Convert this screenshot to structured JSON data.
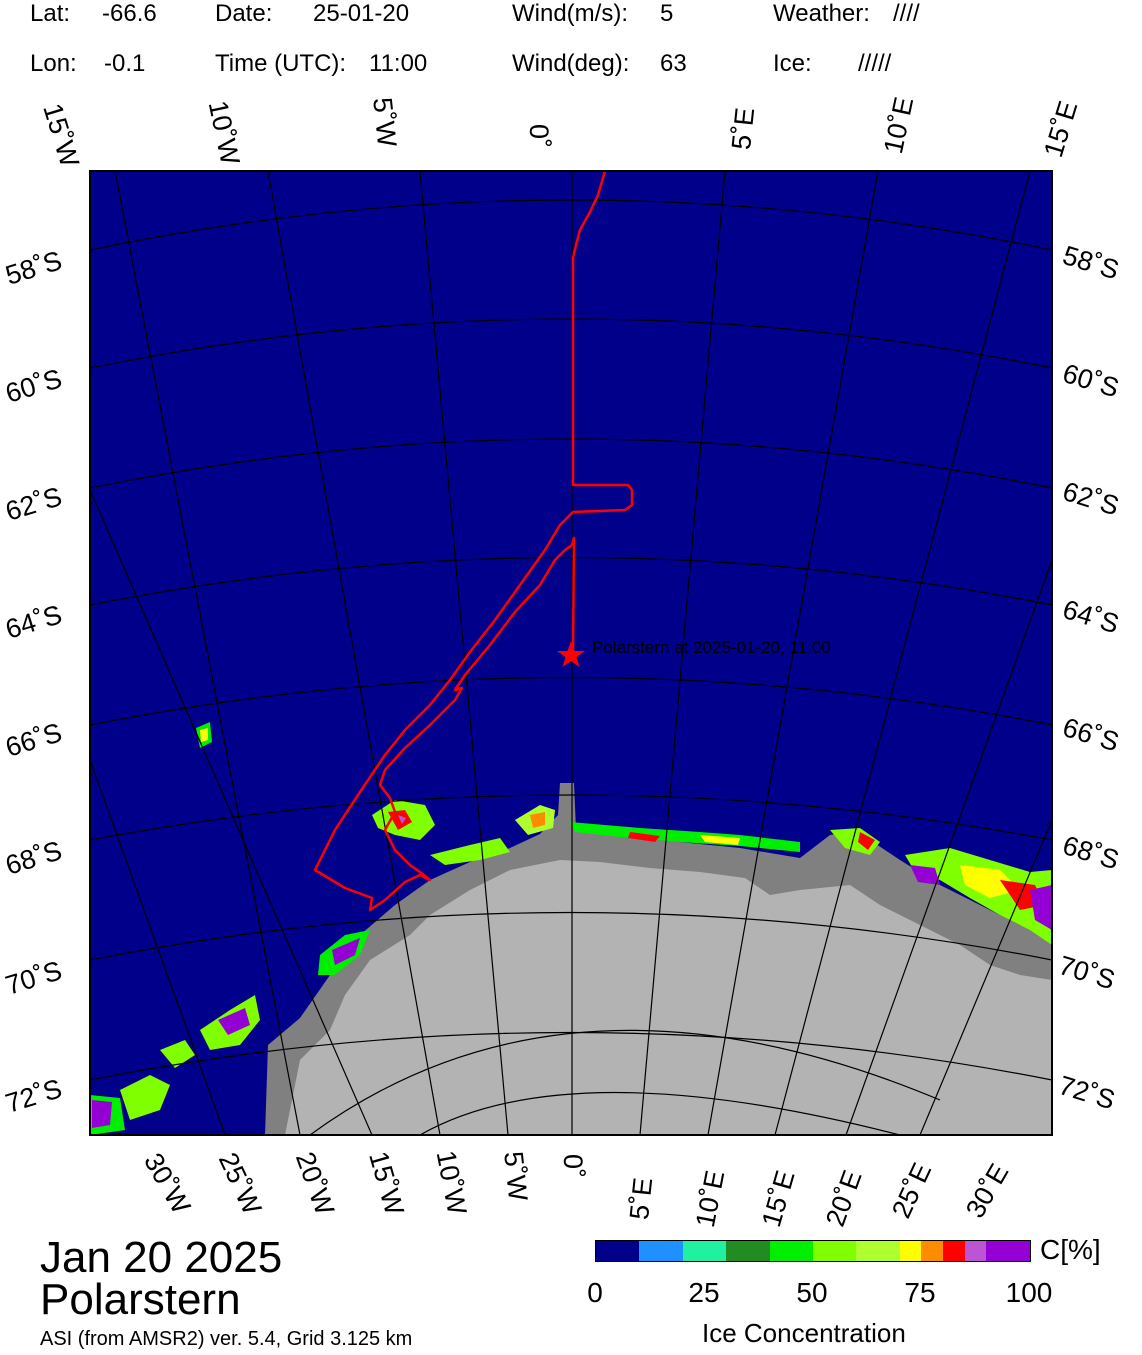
{
  "header": {
    "lat_label": "Lat:",
    "lat_value": "-66.6",
    "lon_label": "Lon:",
    "lon_value": "-0.1",
    "date_label": "Date:",
    "date_value": "25-01-20",
    "time_label": "Time (UTC):",
    "time_value": "11:00",
    "wind_speed_label": "Wind(m/s):",
    "wind_speed_value": "5",
    "wind_dir_label": "Wind(deg):",
    "wind_dir_value": "63",
    "weather_label": "Weather:",
    "weather_value": "////",
    "ice_label": "Ice:",
    "ice_value": "/////"
  },
  "map": {
    "top_lon_labels": [
      "15˚W",
      "10˚W",
      "5˚W",
      "0˚",
      "5˚E",
      "10˚E",
      "15˚E"
    ],
    "left_lat_labels": [
      "58˚S",
      "60˚S",
      "62˚S",
      "64˚S",
      "66˚S",
      "68˚S",
      "70˚S",
      "72˚S"
    ],
    "right_lat_labels": [
      "58˚S",
      "60˚S",
      "62˚S",
      "64˚S",
      "66˚S",
      "68˚S",
      "70˚S",
      "72˚S"
    ],
    "bottom_lon_labels": [
      "30˚W",
      "25˚W",
      "20˚W",
      "15˚W",
      "10˚W",
      "5˚W",
      "0˚",
      "5˚E",
      "10˚E",
      "15˚E",
      "20˚E",
      "25˚E",
      "30˚E"
    ],
    "marker_label": "Polarstern at 2025-01-20, 11:00",
    "colors": {
      "ocean": "#00008b",
      "land": "#b3b3b3",
      "ice_shelf": "#808080",
      "track": "#ff0000",
      "grid": "#000000"
    }
  },
  "footer": {
    "date": "Jan 20 2025",
    "ship": "Polarstern",
    "source": "ASI (from AMSR2) ver. 5.4,  Grid 3.125 km"
  },
  "colorbar": {
    "unit_label": "C[%]",
    "title": "Ice Concentration",
    "ticks": [
      "0",
      "25",
      "50",
      "75",
      "100"
    ],
    "colors": [
      "#00008b",
      "#1e90ff",
      "#20f0a0",
      "#228b22",
      "#00ee00",
      "#7fff00",
      "#adff2f",
      "#ffff00",
      "#ff8c00",
      "#ff0000",
      "#ba55d3",
      "#9400d3"
    ],
    "scale": [
      0,
      10,
      20,
      30,
      40,
      50,
      60,
      70,
      75,
      80,
      85,
      90,
      100
    ]
  }
}
